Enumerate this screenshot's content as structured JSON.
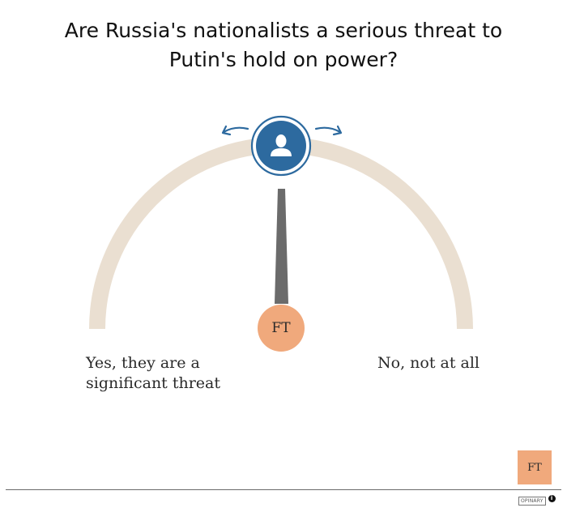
{
  "poll": {
    "question": "Are Russia's nationalists a serious threat to Putin's hold on power?",
    "left_label": "Yes, they are a significant threat",
    "right_label": "No, not at all",
    "needle_position": 0.5
  },
  "publisher": {
    "badge_text": "FT",
    "corner_logo_text": "FT"
  },
  "branding": {
    "name": "OPINARY",
    "info_icon_glyph": "i"
  },
  "icons": {
    "handle": "user-icon",
    "left_arrow": "arrow-left-icon",
    "right_arrow": "arrow-right-icon",
    "info": "info-icon"
  },
  "colors": {
    "arc_track": "#eadfd1",
    "handle_fill": "#2d6a9f",
    "handle_ring": "#2d6a9f",
    "needle": "#6b6b6b",
    "publisher_accent": "#f0a97c",
    "arrows": "#2d6a9f"
  }
}
